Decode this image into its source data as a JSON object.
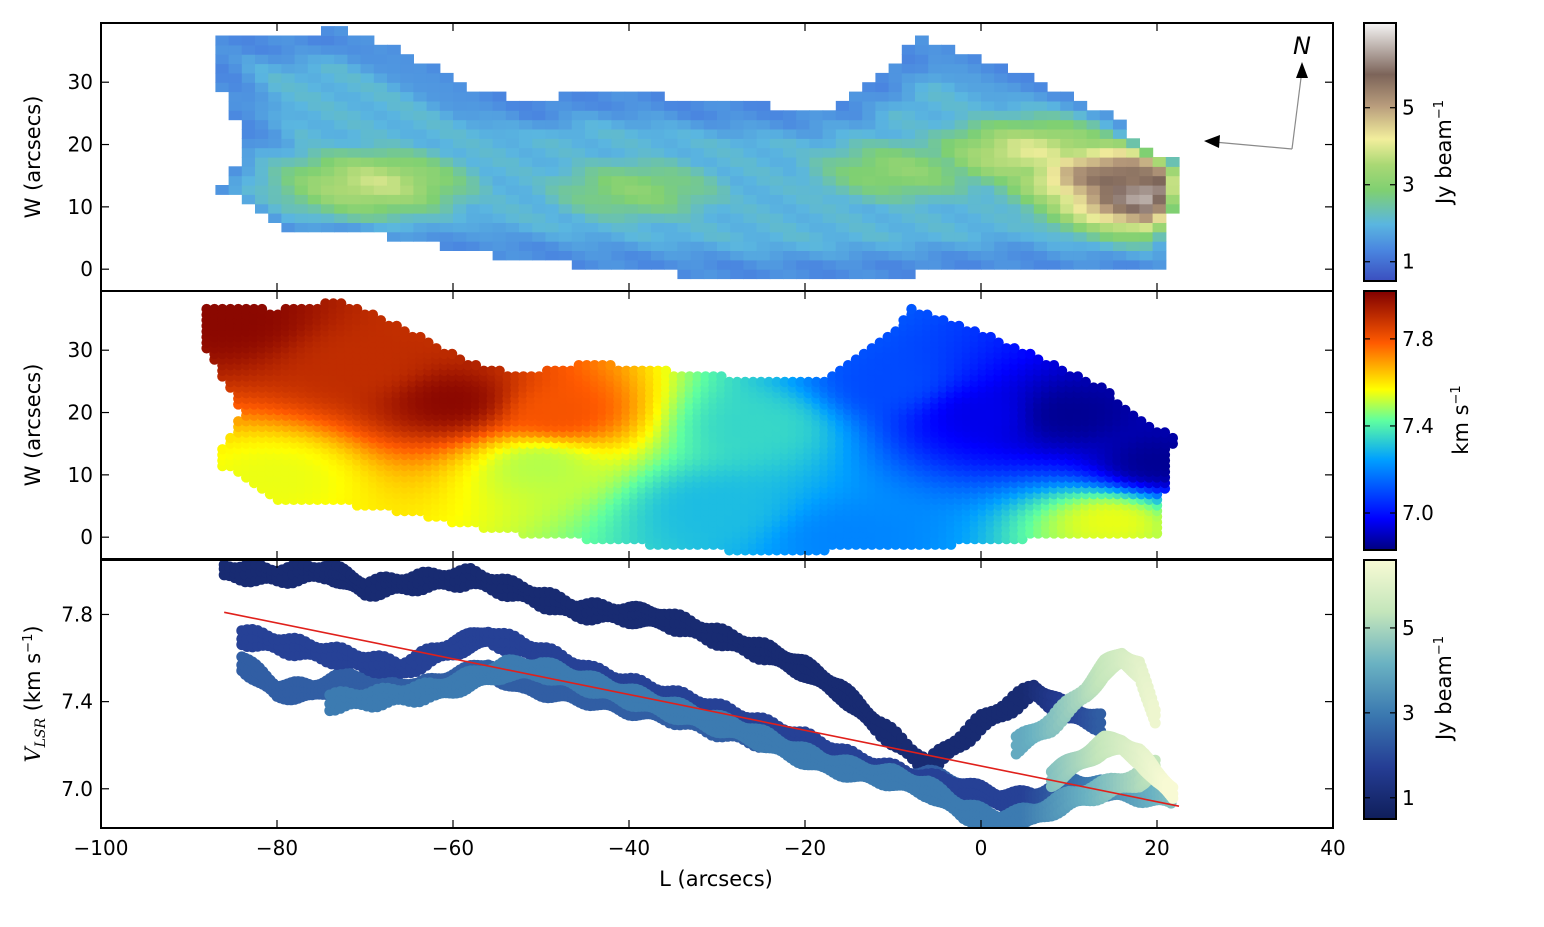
{
  "figure": {
    "xlabel": "L (arcsecs)",
    "x_ticks": [
      "−100",
      "−80",
      "−60",
      "−40",
      "−20",
      "0",
      "20",
      "40"
    ],
    "compass": "N"
  },
  "chart_data": [
    {
      "type": "heatmap",
      "panel": "intensity",
      "ylabel": "W (arcsecs)",
      "xlim": [
        -100,
        40
      ],
      "ylim": [
        -3.5,
        39.5
      ],
      "y_ticks": [
        "0",
        "10",
        "20",
        "30"
      ],
      "colorbar": {
        "label": "Jy beam⁻¹",
        "ticks": [
          "1",
          "3",
          "5"
        ],
        "tick_values": [
          1,
          3,
          5
        ],
        "range": [
          0.5,
          7.2
        ]
      },
      "region_outline": [
        [
          -88,
          37
        ],
        [
          -80,
          36.5
        ],
        [
          -73,
          38
        ],
        [
          -66,
          34
        ],
        [
          -58,
          28
        ],
        [
          -52,
          26
        ],
        [
          -45,
          28
        ],
        [
          -37,
          27
        ],
        [
          -32,
          26
        ],
        [
          -25,
          25.5
        ],
        [
          -18,
          25
        ],
        [
          -10,
          33
        ],
        [
          -8,
          37
        ],
        [
          -2,
          34
        ],
        [
          8,
          28
        ],
        [
          14,
          24
        ],
        [
          18,
          19
        ],
        [
          22,
          16
        ],
        [
          20,
          0
        ],
        [
          8,
          0
        ],
        [
          0,
          -1
        ],
        [
          -15,
          -2
        ],
        [
          -25,
          -2.5
        ],
        [
          -40,
          -1
        ],
        [
          -55,
          1
        ],
        [
          -70,
          5
        ],
        [
          -80,
          6
        ],
        [
          -87,
          12
        ],
        [
          -84,
          20
        ],
        [
          -88,
          30
        ]
      ],
      "intensity_peaks": [
        {
          "l": -70,
          "w": 13,
          "value": 3.8
        },
        {
          "l": -40,
          "w": 12,
          "value": 3.0
        },
        {
          "l": -10,
          "w": 15,
          "value": 3.1
        },
        {
          "l": 5,
          "w": 18,
          "value": 4.0
        },
        {
          "l": 15,
          "w": 14,
          "value": 5.8
        },
        {
          "l": 19,
          "w": 11,
          "value": 6.6
        }
      ]
    },
    {
      "type": "heatmap",
      "panel": "velocity",
      "ylabel": "W (arcsecs)",
      "xlim": [
        -100,
        40
      ],
      "ylim": [
        -3.5,
        39.5
      ],
      "y_ticks": [
        "0",
        "10",
        "20",
        "30"
      ],
      "colorbar": {
        "label": "km s⁻¹",
        "ticks": [
          "7.0",
          "7.4",
          "7.8"
        ],
        "tick_values": [
          7.0,
          7.4,
          7.8
        ],
        "range": [
          6.83,
          8.02
        ]
      },
      "velocity_field": [
        {
          "l": -85,
          "w": 35,
          "value": 8.0
        },
        {
          "l": -70,
          "w": 28,
          "value": 7.9
        },
        {
          "l": -60,
          "w": 22,
          "value": 8.0
        },
        {
          "l": -48,
          "w": 20,
          "value": 7.8
        },
        {
          "l": -80,
          "w": 10,
          "value": 7.55
        },
        {
          "l": -50,
          "w": 12,
          "value": 7.5
        },
        {
          "l": -30,
          "w": 5,
          "value": 7.3
        },
        {
          "l": -25,
          "w": 18,
          "value": 7.35
        },
        {
          "l": -10,
          "w": 25,
          "value": 7.1
        },
        {
          "l": 0,
          "w": 20,
          "value": 6.95
        },
        {
          "l": 10,
          "w": 20,
          "value": 6.85
        },
        {
          "l": 20,
          "w": 12,
          "value": 6.85
        },
        {
          "l": 15,
          "w": 3,
          "value": 7.55
        },
        {
          "l": -15,
          "w": 0,
          "value": 7.2
        }
      ]
    },
    {
      "type": "scatter",
      "panel": "position-velocity",
      "ylabel": "V_LSR (km s⁻¹)",
      "xlim": [
        -100,
        40
      ],
      "ylim": [
        6.82,
        8.05
      ],
      "y_ticks": [
        "7.0",
        "7.4",
        "7.8"
      ],
      "colorbar": {
        "label": "Jy beam⁻¹",
        "ticks": [
          "1",
          "3",
          "5"
        ],
        "tick_values": [
          1,
          3,
          5
        ],
        "range": [
          0.5,
          6.6
        ]
      },
      "series": [
        {
          "x": [
            -86,
            -80,
            -74,
            -70,
            -64,
            -58,
            -52,
            -46,
            -40,
            -36,
            -30,
            -24,
            -20,
            -16,
            -12,
            -6,
            0,
            6,
            10,
            14
          ],
          "y": [
            8.0,
            7.98,
            8.0,
            7.92,
            7.95,
            7.97,
            7.9,
            7.82,
            7.8,
            7.78,
            7.7,
            7.62,
            7.55,
            7.45,
            7.3,
            7.1,
            7.3,
            7.45,
            7.35,
            7.3
          ]
        },
        {
          "x": [
            -84,
            -80,
            -76,
            -72,
            -68,
            -64,
            -60,
            -56,
            -52,
            -48,
            -44,
            -40,
            -36,
            -30,
            -24,
            -18,
            -14,
            -10,
            -6,
            -2
          ],
          "y": [
            7.58,
            7.45,
            7.45,
            7.5,
            7.48,
            7.45,
            7.5,
            7.55,
            7.48,
            7.45,
            7.42,
            7.38,
            7.35,
            7.28,
            7.22,
            7.15,
            7.1,
            7.05,
            7.05,
            7.0
          ]
        },
        {
          "x": [
            -84,
            -78,
            -72,
            -66,
            -60,
            -56,
            -50,
            -44,
            -38,
            -32,
            -26,
            -20,
            -14,
            -8,
            -2,
            2,
            6,
            10,
            14,
            18,
            22
          ],
          "y": [
            7.7,
            7.65,
            7.6,
            7.55,
            7.65,
            7.7,
            7.62,
            7.52,
            7.45,
            7.38,
            7.3,
            7.22,
            7.12,
            7.05,
            7.0,
            6.95,
            6.95,
            7.02,
            7.0,
            6.98,
            6.96
          ]
        },
        {
          "x": [
            -74,
            -68,
            -62,
            -58,
            -54,
            -50,
            -46,
            -42,
            -38,
            -34,
            -30,
            -26,
            -22,
            -18,
            -14,
            -10,
            -6,
            -2,
            2,
            6,
            10,
            14,
            18,
            20
          ],
          "y": [
            7.4,
            7.42,
            7.45,
            7.5,
            7.55,
            7.55,
            7.5,
            7.45,
            7.4,
            7.35,
            7.3,
            7.25,
            7.18,
            7.12,
            7.08,
            7.05,
            7.0,
            6.9,
            6.85,
            6.88,
            6.95,
            7.0,
            7.05,
            7.1
          ]
        },
        {
          "x": [
            4,
            8,
            12,
            14,
            16,
            18,
            20
          ],
          "y": [
            7.2,
            7.3,
            7.45,
            7.55,
            7.6,
            7.55,
            7.3
          ]
        },
        {
          "x": [
            8,
            10,
            12,
            14,
            16,
            18,
            20,
            22
          ],
          "y": [
            7.05,
            7.1,
            7.15,
            7.2,
            7.2,
            7.15,
            7.05,
            6.98
          ]
        }
      ],
      "fit_line": {
        "x": [
          -86,
          22.5
        ],
        "y": [
          7.81,
          6.92
        ],
        "color": "#e0201b"
      }
    }
  ]
}
